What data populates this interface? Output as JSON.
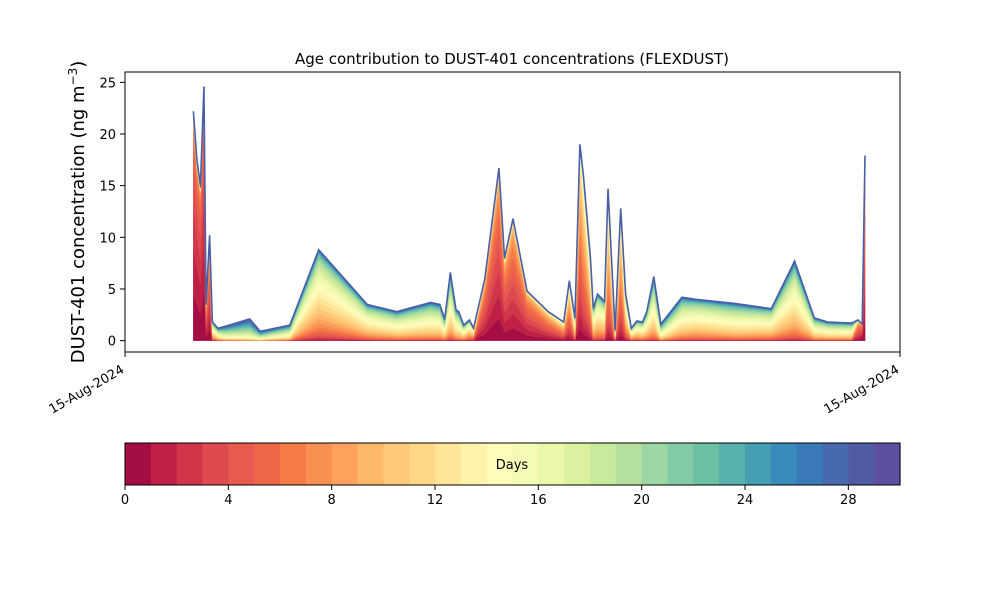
{
  "chart_data": {
    "type": "area",
    "title": "Age contribution to DUST-401 concentrations (FLEXDUST)",
    "ylabel": "DUST-401 concentration (ng m⁻³)",
    "ylabel_base": "DUST-401 concentration (ng m",
    "ylabel_sup": "−3",
    "ylabel_close": ")",
    "xlabel": "",
    "x_tick_labels": [
      "15-Aug-2024",
      "15-Aug-2024"
    ],
    "ylim": [
      -1.1,
      26
    ],
    "yticks": [
      0,
      5,
      10,
      15,
      20,
      25
    ],
    "x_range": [
      0,
      1
    ],
    "x": [
      0.046,
      0.051,
      0.056,
      0.061,
      0.064,
      0.069,
      0.073,
      0.081,
      0.092,
      0.126,
      0.141,
      0.183,
      0.224,
      0.293,
      0.335,
      0.383,
      0.396,
      0.403,
      0.411,
      0.419,
      0.423,
      0.43,
      0.438,
      0.444,
      0.46,
      0.48,
      0.488,
      0.5,
      0.52,
      0.55,
      0.572,
      0.58,
      0.588,
      0.595,
      0.6,
      0.61,
      0.614,
      0.62,
      0.63,
      0.635,
      0.645,
      0.653,
      0.66,
      0.668,
      0.676,
      0.684,
      0.69,
      0.7,
      0.71,
      0.74,
      0.759,
      0.815,
      0.867,
      0.9,
      0.928,
      0.947,
      0.981,
      0.99,
      0.996,
      1.0
    ],
    "total": [
      22.2,
      17.5,
      15,
      24.6,
      3.5,
      10.2,
      1.8,
      1.2,
      1.4,
      2.1,
      0.9,
      1.5,
      8.8,
      3.5,
      2.8,
      3.7,
      3.5,
      2.1,
      6.6,
      3,
      2.8,
      1.5,
      2,
      1.2,
      6,
      16.7,
      8,
      11.8,
      4.8,
      2.8,
      1.8,
      5.8,
      2.2,
      19,
      16,
      8,
      3.1,
      4.5,
      3.8,
      14.7,
      1,
      12.8,
      4.5,
      1.2,
      1.9,
      1.8,
      2.8,
      6.2,
      1.6,
      4.2,
      4,
      3.6,
      3.1,
      7.7,
      2.2,
      1.8,
      1.7,
      2,
      1.6,
      17.9
    ],
    "peak_age_days": [
      1,
      1,
      1.5,
      1,
      3,
      3,
      13,
      16,
      19,
      21,
      20,
      17,
      13,
      14,
      15,
      15,
      15,
      15,
      15,
      15,
      15,
      14,
      12,
      10,
      3,
      2,
      3,
      3,
      3,
      4,
      6,
      6,
      13,
      5,
      7,
      9,
      13,
      13,
      13,
      8,
      14,
      7,
      11,
      13,
      13,
      14,
      14,
      15,
      17,
      15,
      14,
      15,
      14,
      14,
      15,
      15,
      15,
      4,
      2,
      3
    ],
    "spread_days": [
      3,
      3,
      3,
      3,
      4,
      4,
      6,
      6,
      6,
      6,
      6,
      6,
      6,
      6,
      6,
      6,
      6,
      6,
      6,
      6,
      6,
      6,
      6,
      6,
      4,
      4,
      4,
      4,
      4,
      5,
      6,
      6,
      6,
      5,
      5,
      6,
      6,
      6,
      6,
      5,
      6,
      5,
      6,
      6,
      6,
      6,
      6,
      6,
      6,
      6,
      6,
      6,
      6,
      6,
      6,
      6,
      6,
      4,
      3,
      3
    ],
    "colorbar": {
      "label": "Days",
      "range": [
        0,
        30
      ],
      "ticks": [
        0,
        4,
        8,
        12,
        16,
        20,
        24,
        28
      ],
      "colors": [
        "#a50e45",
        "#be2145",
        "#d03549",
        "#de4a4d",
        "#e85a4f",
        "#ee6749",
        "#f57a48",
        "#f98f51",
        "#fca25d",
        "#fdb869",
        "#fdc878",
        "#fed789",
        "#fee598",
        "#fff2aa",
        "#fefcb8",
        "#f5fab7",
        "#ebf7a9",
        "#dcf1a0",
        "#c9e99e",
        "#b5e09d",
        "#9cd6a4",
        "#82cba6",
        "#6cc0a5",
        "#57b0ab",
        "#469eb3",
        "#3a8bbd",
        "#3b7ab8",
        "#456ab0",
        "#525aa6",
        "#5e4fa2"
      ]
    }
  }
}
